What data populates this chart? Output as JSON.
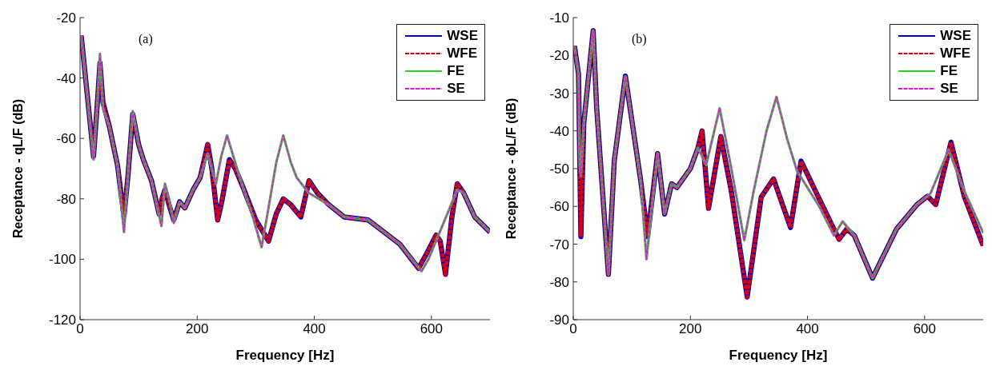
{
  "chart_data": [
    {
      "type": "line",
      "xlabel": "Frequency [Hz]",
      "ylabel": "Receptance - qL/F (dB)",
      "annotations": [
        "(a)"
      ],
      "xlim": [
        0,
        700
      ],
      "xticks": [
        0,
        200,
        400,
        600
      ],
      "ylim": [
        -120,
        -20
      ],
      "yticks": [
        -120,
        -100,
        -80,
        -60,
        -40,
        -20
      ],
      "grid": false,
      "legend": "top right",
      "marker": "none",
      "series": [
        {
          "name": "WSE",
          "color": "#0000cc",
          "line_style": "solid",
          "x": [
            2,
            12,
            23,
            30,
            34,
            39,
            50,
            64,
            75,
            82,
            90,
            100,
            108,
            122,
            135,
            140,
            145,
            152,
            160,
            170,
            179,
            193,
            205,
            218,
            225,
            235,
            242,
            255,
            265,
            278,
            300,
            322,
            335,
            347,
            360,
            377,
            391,
            405,
            425,
            451,
            492,
            546,
            578,
            595,
            608,
            615,
            624,
            635,
            644,
            655,
            674,
            700
          ],
          "values": [
            -26,
            -45,
            -66,
            -47,
            -35,
            -48,
            -56,
            -69,
            -86,
            -72,
            -52,
            -62,
            -67,
            -74,
            -85,
            -80,
            -77,
            -82,
            -87,
            -81,
            -83,
            -77,
            -73,
            -62,
            -70,
            -87,
            -81,
            -67,
            -70,
            -76,
            -87,
            -94,
            -85,
            -80,
            -82,
            -86,
            -74,
            -78,
            -82,
            -86,
            -87,
            -95,
            -103,
            -97,
            -92,
            -94,
            -105,
            -86,
            -75,
            -78,
            -86,
            -91
          ]
        },
        {
          "name": "WFE",
          "color": "#dd0000",
          "line_style": "dashed",
          "x": [
            2,
            12,
            23,
            30,
            34,
            39,
            50,
            64,
            75,
            82,
            90,
            100,
            108,
            122,
            135,
            140,
            145,
            152,
            160,
            170,
            179,
            193,
            205,
            218,
            225,
            235,
            242,
            255,
            265,
            278,
            300,
            322,
            335,
            347,
            360,
            377,
            391,
            405,
            425,
            451,
            492,
            546,
            578,
            595,
            608,
            615,
            624,
            635,
            644,
            655,
            674,
            700
          ],
          "values": [
            -26,
            -45,
            -66,
            -47,
            -35,
            -48,
            -56,
            -69,
            -86,
            -72,
            -52,
            -62,
            -67,
            -74,
            -85,
            -80,
            -77,
            -82,
            -87,
            -81,
            -83,
            -77,
            -73,
            -62,
            -70,
            -87,
            -81,
            -67,
            -70,
            -76,
            -87,
            -94,
            -85,
            -80,
            -82,
            -86,
            -74,
            -78,
            -82,
            -86,
            -87,
            -95,
            -103,
            -97,
            -92,
            -94,
            -105,
            -86,
            -75,
            -78,
            -86,
            -91
          ]
        },
        {
          "name": "FE",
          "color": "#33cc33",
          "line_style": "solid",
          "x": [
            2,
            12,
            23,
            30,
            34,
            39,
            50,
            64,
            75,
            82,
            90,
            100,
            108,
            122,
            139,
            145,
            152,
            160,
            170,
            179,
            193,
            205,
            218,
            232,
            241,
            251,
            265,
            278,
            295,
            310,
            320,
            335,
            347,
            360,
            370,
            390,
            425,
            451,
            492,
            546,
            583,
            595,
            610,
            625,
            644,
            655,
            674,
            700
          ],
          "values": [
            -26,
            -45,
            -67,
            -47,
            -32,
            -50,
            -56,
            -69,
            -91,
            -72,
            -51,
            -62,
            -67,
            -74,
            -89,
            -75,
            -80,
            -88,
            -81,
            -83,
            -77,
            -73,
            -65,
            -75,
            -66,
            -59,
            -68,
            -76,
            -86,
            -96,
            -85,
            -68,
            -59,
            -68,
            -73,
            -78,
            -82,
            -86,
            -87,
            -95,
            -104,
            -100,
            -93,
            -86,
            -77,
            -78,
            -86,
            -91
          ]
        },
        {
          "name": "SE",
          "color": "#ff00ff",
          "line_style": "dashed",
          "x": [
            2,
            12,
            23,
            30,
            34,
            39,
            50,
            64,
            75,
            82,
            90,
            100,
            108,
            122,
            139,
            145,
            152,
            160,
            170,
            179,
            193,
            205,
            218,
            232,
            241,
            251,
            265,
            278,
            295,
            310,
            320,
            335,
            347,
            360,
            370,
            390,
            425,
            451,
            492,
            546,
            583,
            595,
            610,
            625,
            644,
            655,
            674,
            700
          ],
          "values": [
            -26,
            -45,
            -67,
            -47,
            -32,
            -50,
            -56,
            -69,
            -91,
            -72,
            -51,
            -62,
            -67,
            -74,
            -89,
            -75,
            -80,
            -88,
            -81,
            -83,
            -77,
            -73,
            -65,
            -75,
            -66,
            -59,
            -68,
            -76,
            -86,
            -96,
            -85,
            -68,
            -59,
            -68,
            -73,
            -78,
            -82,
            -86,
            -87,
            -95,
            -104,
            -100,
            -93,
            -86,
            -77,
            -78,
            -86,
            -91
          ]
        }
      ]
    },
    {
      "type": "line",
      "xlabel": "Frequency [Hz]",
      "ylabel": "Receptance - ϕL/F (dB)",
      "annotations": [
        "(b)"
      ],
      "xlim": [
        0,
        700
      ],
      "xticks": [
        0,
        200,
        400,
        600
      ],
      "ylim": [
        -90,
        -10
      ],
      "yticks": [
        -90,
        -80,
        -70,
        -60,
        -50,
        -40,
        -30,
        -20,
        -10
      ],
      "grid": false,
      "legend": "top right",
      "marker": "none",
      "series": [
        {
          "name": "WSE",
          "color": "#0000cc",
          "line_style": "solid",
          "x": [
            2,
            9,
            13,
            18,
            34,
            40,
            60,
            70,
            89,
            115,
            127,
            144,
            156,
            168,
            177,
            200,
            213,
            220,
            231,
            252,
            270,
            297,
            321,
            342,
            371,
            389,
            420,
            445,
            454,
            467,
            480,
            511,
            552,
            587,
            605,
            619,
            645,
            668,
            700
          ],
          "values": [
            -17.5,
            -25,
            -68,
            -38,
            -13.5,
            -34,
            -78,
            -48,
            -25.5,
            -53,
            -68,
            -46,
            -62,
            -54,
            -55,
            -50,
            -44.5,
            -40,
            -60.5,
            -41.5,
            -56,
            -84,
            -57.5,
            -52.7,
            -65.6,
            -48,
            -58,
            -66,
            -68.7,
            -66,
            -67.7,
            -79,
            -66,
            -59.5,
            -57.3,
            -59.5,
            -43,
            -57.5,
            -70.4
          ]
        },
        {
          "name": "WFE",
          "color": "#dd0000",
          "line_style": "dashed",
          "x": [
            2,
            9,
            13,
            18,
            34,
            40,
            60,
            70,
            89,
            115,
            127,
            144,
            156,
            168,
            177,
            200,
            213,
            220,
            231,
            252,
            270,
            297,
            321,
            342,
            371,
            389,
            420,
            445,
            454,
            467,
            480,
            511,
            552,
            587,
            605,
            619,
            645,
            668,
            700
          ],
          "values": [
            -17.5,
            -25,
            -68,
            -38,
            -13.5,
            -34,
            -78,
            -48,
            -25.5,
            -53,
            -68,
            -46,
            -62,
            -54,
            -55,
            -50,
            -44.5,
            -40,
            -60.5,
            -41.5,
            -56,
            -84,
            -57.5,
            -52.7,
            -65.6,
            -48,
            -58,
            -66,
            -68.7,
            -66,
            -67.7,
            -79,
            -66,
            -59.5,
            -57.3,
            -59.5,
            -43,
            -57.5,
            -70.4
          ]
        },
        {
          "name": "FE",
          "color": "#33cc33",
          "line_style": "solid",
          "x": [
            2,
            9,
            11,
            13,
            18,
            34,
            40,
            60,
            70,
            89,
            115,
            125,
            144,
            156,
            168,
            177,
            200,
            213,
            227,
            250,
            270,
            292,
            308,
            330,
            347,
            365,
            382,
            420,
            445,
            460,
            480,
            511,
            552,
            587,
            610,
            641,
            668,
            700
          ],
          "values": [
            -17.5,
            -25,
            -49,
            -52,
            -38,
            -13.5,
            -34,
            -78,
            -48,
            -25.5,
            -53,
            -74,
            -46,
            -62,
            -54,
            -55,
            -50,
            -44.5,
            -49,
            -34,
            -50,
            -69,
            -56,
            -40,
            -31,
            -42,
            -50.6,
            -60,
            -67.7,
            -64,
            -67.7,
            -79,
            -66,
            -59.5,
            -56.6,
            -45,
            -56,
            -67
          ]
        },
        {
          "name": "SE",
          "color": "#ff00ff",
          "line_style": "dashed",
          "x": [
            2,
            9,
            11,
            13,
            18,
            34,
            40,
            60,
            70,
            89,
            115,
            125,
            144,
            156,
            168,
            177,
            200,
            213,
            227,
            250,
            270,
            292,
            308,
            330,
            347,
            365,
            382,
            420,
            445,
            460,
            480,
            511,
            552,
            587,
            610,
            641,
            668,
            700
          ],
          "values": [
            -17.5,
            -25,
            -49,
            -52,
            -38,
            -13.5,
            -34,
            -78,
            -48,
            -25.5,
            -53,
            -74,
            -46,
            -62,
            -54,
            -55,
            -50,
            -44.5,
            -49,
            -34,
            -50,
            -69,
            -56,
            -40,
            -31,
            -42,
            -50.6,
            -60,
            -67.7,
            -64,
            -67.7,
            -79,
            -66,
            -59.5,
            -56.6,
            -45,
            -56,
            -67
          ]
        }
      ]
    }
  ]
}
